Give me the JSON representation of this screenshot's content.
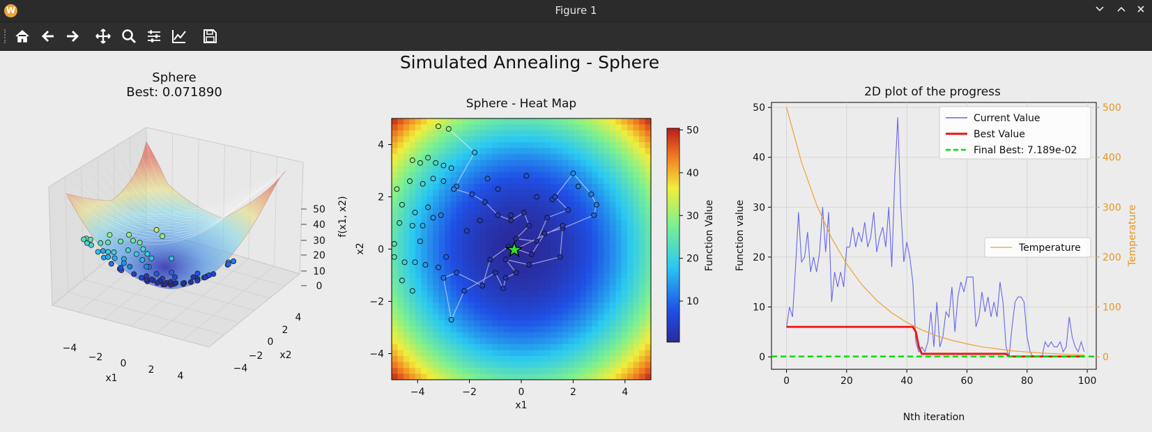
{
  "window": {
    "title": "Figure 1",
    "app_icon_letter": "W"
  },
  "window_controls": [
    "minimize",
    "maximize",
    "close"
  ],
  "toolbar": {
    "buttons": [
      {
        "name": "home-button",
        "icon": "home-icon"
      },
      {
        "name": "back-button",
        "icon": "arrow-left-icon"
      },
      {
        "name": "forward-button",
        "icon": "arrow-right-icon"
      },
      {
        "name": "pan-button",
        "icon": "move-icon"
      },
      {
        "name": "zoom-button",
        "icon": "magnifier-icon"
      },
      {
        "name": "subplots-button",
        "icon": "sliders-icon"
      },
      {
        "name": "axes-button",
        "icon": "line-chart-icon"
      },
      {
        "name": "save-button",
        "icon": "floppy-icon"
      }
    ]
  },
  "figure": {
    "suptitle": "Simulated Annealing - Sphere"
  },
  "chart_data": [
    {
      "type": "scatter",
      "kind": "3d-surface",
      "title": "Sphere",
      "subtitle": "Best: 0.071890",
      "xlabel": "x1",
      "ylabel": "x2",
      "zlabel": "f(x1, x2)",
      "xticks": [
        -4,
        -2,
        0,
        2,
        4
      ],
      "yticks": [
        -4,
        -2,
        0,
        2,
        4
      ],
      "zticks": [
        0,
        10,
        20,
        30,
        40,
        50
      ]
    },
    {
      "type": "heatmap",
      "title": "Sphere - Heat Map",
      "xlabel": "x1",
      "ylabel": "x2",
      "xlim": [
        -5,
        5
      ],
      "ylim": [
        -5,
        5
      ],
      "xticks": [
        -4,
        -2,
        0,
        2,
        4
      ],
      "yticks": [
        -4,
        -2,
        0,
        2,
        4
      ],
      "colorbar": {
        "label": "Function Value",
        "ticks": [
          10,
          20,
          30,
          40,
          50
        ],
        "range": [
          0,
          50
        ]
      },
      "best_marker": {
        "x1": -0.27,
        "x2": -0.03
      },
      "path": [
        [
          -2.8,
          4.6
        ],
        [
          -1.8,
          3.7
        ],
        [
          -2.6,
          2.3
        ],
        [
          -1.9,
          2.1
        ],
        [
          -1.4,
          1.8
        ],
        [
          -0.9,
          1.3
        ],
        [
          -0.4,
          1.1
        ],
        [
          0.1,
          1.4
        ],
        [
          0.3,
          0.9
        ],
        [
          -0.2,
          0.4
        ],
        [
          0.6,
          0.3
        ],
        [
          1.0,
          1.2
        ],
        [
          1.8,
          1.5
        ],
        [
          1.3,
          2.0
        ],
        [
          2.0,
          2.9
        ],
        [
          2.7,
          2.1
        ],
        [
          2.9,
          1.7
        ],
        [
          2.8,
          1.3
        ],
        [
          1.6,
          0.8
        ],
        [
          0.9,
          0.6
        ],
        [
          0.4,
          -0.2
        ],
        [
          -0.5,
          0.1
        ],
        [
          -1.2,
          -0.4
        ],
        [
          -1.5,
          -1.4
        ],
        [
          -2.5,
          -0.9
        ],
        [
          -3.0,
          -1.1
        ],
        [
          -2.7,
          -2.7
        ],
        [
          -2.2,
          -1.6
        ],
        [
          -1.0,
          -0.9
        ],
        [
          -0.7,
          -1.5
        ],
        [
          -0.6,
          -1.1
        ],
        [
          -0.2,
          -0.9
        ],
        [
          -0.6,
          -0.4
        ],
        [
          0.3,
          -0.6
        ],
        [
          1.5,
          -0.3
        ],
        [
          1.6,
          0.9
        ],
        [
          -0.3,
          -0.05
        ]
      ],
      "scatter_points": [
        [
          -4.2,
          3.4
        ],
        [
          -3.9,
          3.3
        ],
        [
          -3.6,
          3.5
        ],
        [
          -3.3,
          3.3
        ],
        [
          -3.0,
          3.2
        ],
        [
          -2.7,
          3.1
        ],
        [
          -4.3,
          2.6
        ],
        [
          -3.8,
          2.5
        ],
        [
          -3.4,
          2.7
        ],
        [
          -3.0,
          2.6
        ],
        [
          -2.5,
          2.4
        ],
        [
          -4.6,
          1.7
        ],
        [
          -4.1,
          1.4
        ],
        [
          -3.6,
          1.6
        ],
        [
          -3.1,
          1.3
        ],
        [
          -4.7,
          1.0
        ],
        [
          -4.2,
          0.9
        ],
        [
          -3.8,
          0.9
        ],
        [
          -3.4,
          1.2
        ],
        [
          -4.9,
          -0.3
        ],
        [
          -4.5,
          -0.5
        ],
        [
          -4.1,
          -0.5
        ],
        [
          -3.7,
          -0.6
        ],
        [
          -4.6,
          -1.2
        ],
        [
          -4.2,
          -1.6
        ],
        [
          -4.8,
          2.3
        ],
        [
          -4.9,
          0.2
        ],
        [
          -3.2,
          -0.7
        ],
        [
          -2.9,
          -0.3
        ],
        [
          -3.9,
          0.3
        ],
        [
          -3.2,
          4.7
        ],
        [
          -1.3,
          2.7
        ],
        [
          1.2,
          1.9
        ],
        [
          2.2,
          2.4
        ],
        [
          0.2,
          2.8
        ],
        [
          -0.9,
          2.3
        ],
        [
          -1.6,
          1.1
        ],
        [
          -2.1,
          0.7
        ],
        [
          -0.4,
          1.3
        ],
        [
          0.6,
          2.0
        ]
      ]
    },
    {
      "type": "line",
      "title": "2D plot of the progress",
      "xlabel": "Nth iteration",
      "ylabel": "Function value",
      "ylabel_right": "Temperature",
      "xlim": [
        -5,
        103
      ],
      "ylim": [
        -2.5,
        51
      ],
      "ylim_right": [
        -25,
        510
      ],
      "xticks": [
        0,
        20,
        40,
        60,
        80,
        100
      ],
      "yticks": [
        0,
        10,
        20,
        30,
        40,
        50
      ],
      "yticks_right": [
        0,
        100,
        200,
        300,
        400,
        500
      ],
      "legend": {
        "position": "upper right",
        "entries": [
          "Current Value",
          "Best Value",
          "Final Best: 7.189e-02"
        ]
      },
      "legend_right": {
        "position": "center right",
        "entries": [
          "Temperature"
        ]
      },
      "series": [
        {
          "name": "Current Value",
          "color": "#4444ee",
          "x": [
            0,
            1,
            2,
            3,
            4,
            5,
            6,
            7,
            8,
            9,
            10,
            11,
            12,
            13,
            14,
            15,
            16,
            17,
            18,
            19,
            20,
            21,
            22,
            23,
            24,
            25,
            26,
            27,
            28,
            29,
            30,
            31,
            32,
            33,
            34,
            35,
            36,
            37,
            38,
            39,
            40,
            41,
            42,
            43,
            44,
            45,
            46,
            47,
            48,
            49,
            50,
            51,
            52,
            53,
            54,
            55,
            56,
            57,
            58,
            59,
            60,
            61,
            62,
            63,
            64,
            65,
            66,
            67,
            68,
            69,
            70,
            71,
            72,
            73,
            74,
            75,
            76,
            77,
            78,
            79,
            80,
            81,
            82,
            83,
            84,
            85,
            86,
            87,
            88,
            89,
            90,
            91,
            92,
            93,
            94,
            95,
            96,
            97,
            98,
            99
          ],
          "values": [
            6,
            10,
            8,
            18,
            29,
            19,
            20,
            25,
            17,
            20,
            17,
            21,
            30,
            21,
            29,
            11,
            17,
            14,
            17,
            14,
            22,
            22,
            26,
            22,
            25,
            23,
            27,
            22,
            24,
            29,
            21,
            24,
            26,
            22,
            30,
            18,
            36,
            48,
            30,
            19,
            23,
            20,
            15,
            3,
            1,
            2,
            1,
            3,
            9,
            2,
            11,
            2,
            4,
            9,
            8,
            14,
            5,
            12,
            15,
            13,
            16,
            16,
            16,
            6,
            8,
            13,
            9,
            12,
            8,
            11,
            8,
            15,
            11,
            2,
            0,
            6,
            11,
            12,
            12,
            11,
            4,
            1,
            0,
            0,
            0,
            0,
            3,
            2,
            3,
            2,
            2,
            3,
            1,
            2,
            8,
            4,
            2,
            1,
            3,
            1
          ]
        },
        {
          "name": "Best Value",
          "color": "#ee1111",
          "x": [
            0,
            42,
            43,
            44,
            45,
            73,
            74,
            99
          ],
          "values": [
            6,
            6,
            5,
            2,
            0.6,
            0.6,
            0.07,
            0.07
          ]
        },
        {
          "name": "Final Best: 7.189e-02",
          "color": "#00dd00",
          "value": 0.07189
        },
        {
          "name": "Temperature",
          "color": "#f0a030",
          "axis": "right",
          "x": [
            0,
            5,
            10,
            15,
            20,
            25,
            30,
            35,
            40,
            45,
            50,
            55,
            60,
            65,
            70,
            75,
            80,
            85,
            90,
            95,
            99
          ],
          "values": [
            500,
            390,
            305,
            238,
            186,
            145,
            113,
            88,
            69,
            54,
            42,
            33,
            26,
            20,
            16,
            12,
            9.7,
            7.5,
            5.9,
            4.6,
            3.7
          ]
        }
      ]
    }
  ]
}
